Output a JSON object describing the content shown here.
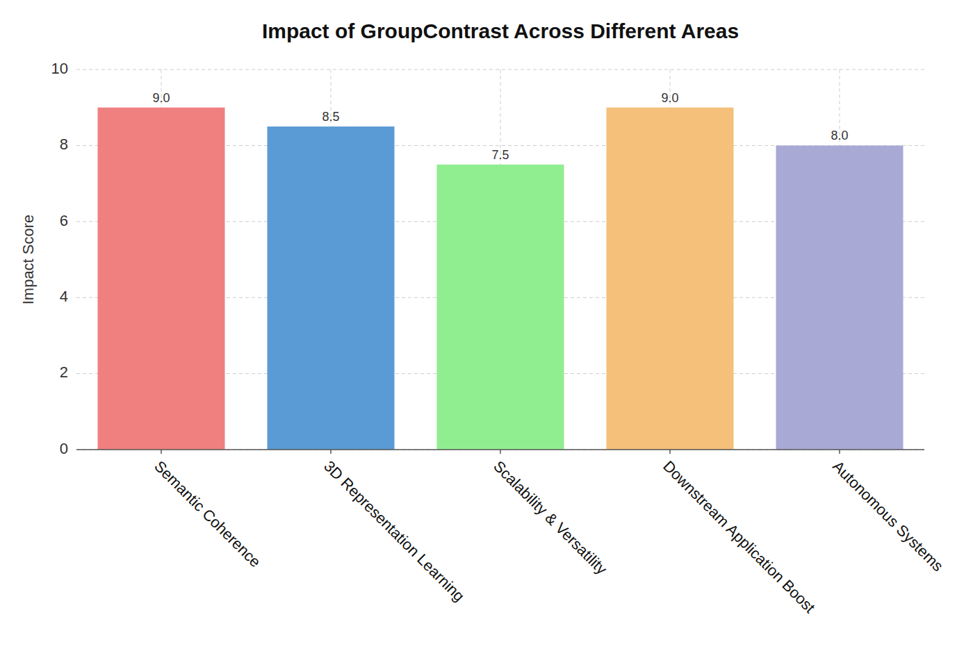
{
  "chart_data": {
    "type": "bar",
    "title": "Impact of GroupContrast Across Different Areas",
    "categories": [
      "Semantic Coherence",
      "3D Representation Learning",
      "Scalability & Versatility",
      "Downstream Application Boost",
      "Autonomous Systems"
    ],
    "values": [
      9.0,
      8.5,
      7.5,
      9.0,
      8.0
    ],
    "value_labels": [
      "9.0",
      "8.5",
      "7.5",
      "9.0",
      "8.0"
    ],
    "colors": [
      "#F08080",
      "#5B9BD5",
      "#90EE90",
      "#F5C07A",
      "#A9A9D6"
    ],
    "ylabel": "Impact Score",
    "ylim": [
      0,
      10
    ],
    "yticks": [
      0,
      2,
      4,
      6,
      8,
      10
    ],
    "grid": true,
    "data_labels": true
  }
}
